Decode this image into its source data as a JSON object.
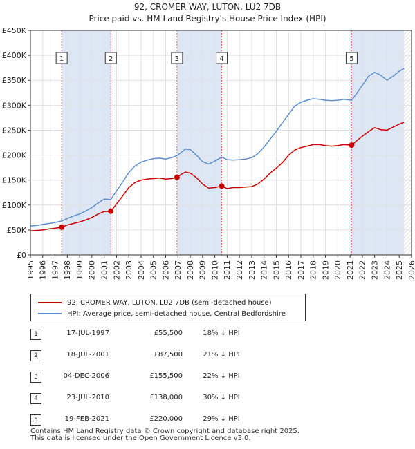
{
  "chart_data": {
    "type": "line",
    "title": "92, CROMER WAY, LUTON, LU2 7DB",
    "subtitle": "Price paid vs. HM Land Registry's House Price Index (HPI)",
    "xlabel": "",
    "ylabel": "",
    "xlim": [
      1995,
      2026
    ],
    "ylim": [
      0,
      450000
    ],
    "y_ticks": [
      0,
      50000,
      100000,
      150000,
      200000,
      250000,
      300000,
      350000,
      400000,
      450000
    ],
    "y_tick_labels": [
      "£0",
      "£50K",
      "£100K",
      "£150K",
      "£200K",
      "£250K",
      "£300K",
      "£350K",
      "£400K",
      "£450K"
    ],
    "x_ticks": [
      1995,
      1996,
      1997,
      1998,
      1999,
      2000,
      2001,
      2002,
      2003,
      2004,
      2005,
      2006,
      2007,
      2008,
      2009,
      2010,
      2011,
      2012,
      2013,
      2014,
      2015,
      2016,
      2017,
      2018,
      2019,
      2020,
      2021,
      2022,
      2023,
      2024,
      2025,
      2026
    ],
    "grid": true,
    "colors": {
      "property": "#cc0000",
      "hpi": "#5b8fcf",
      "band": "#dde6f5",
      "marker_line": "#e06666",
      "hatch": "#cccccc"
    },
    "series": [
      {
        "name": "92, CROMER WAY, LUTON, LU2 7DB (semi-detached house)",
        "x": [
          1995.0,
          1995.5,
          1996.0,
          1996.5,
          1997.0,
          1997.54,
          1998.0,
          1998.5,
          1999.0,
          1999.5,
          2000.0,
          2000.5,
          2001.0,
          2001.54,
          2002.0,
          2002.5,
          2003.0,
          2003.5,
          2004.0,
          2004.5,
          2005.0,
          2005.5,
          2006.0,
          2006.5,
          2006.92,
          2007.3,
          2007.6,
          2008.0,
          2008.5,
          2009.0,
          2009.5,
          2010.0,
          2010.56,
          2011.0,
          2011.5,
          2012.0,
          2012.5,
          2013.0,
          2013.5,
          2014.0,
          2014.5,
          2015.0,
          2015.5,
          2016.0,
          2016.5,
          2017.0,
          2017.5,
          2018.0,
          2018.5,
          2019.0,
          2019.5,
          2020.0,
          2020.5,
          2021.13,
          2021.5,
          2022.0,
          2022.5,
          2023.0,
          2023.5,
          2024.0,
          2024.5,
          2025.0,
          2025.4
        ],
        "y": [
          48000,
          49000,
          50000,
          52000,
          53500,
          55500,
          60000,
          63000,
          66000,
          70000,
          75000,
          82000,
          87000,
          87500,
          102000,
          118000,
          135000,
          145000,
          150000,
          152000,
          153000,
          154000,
          152000,
          153000,
          155500,
          162000,
          166000,
          164000,
          155000,
          142000,
          134000,
          135000,
          138000,
          133000,
          135000,
          135000,
          136000,
          137000,
          142000,
          152000,
          164000,
          174000,
          185000,
          200000,
          210000,
          215000,
          218000,
          221000,
          221000,
          219000,
          218000,
          219000,
          221000,
          220000,
          228000,
          238000,
          247000,
          255000,
          251000,
          250000,
          256000,
          262000,
          266000
        ]
      },
      {
        "name": "HPI: Average price, semi-detached house, Central Bedfordshire",
        "x": [
          1995.0,
          1995.5,
          1996.0,
          1996.5,
          1997.0,
          1997.54,
          1998.0,
          1998.5,
          1999.0,
          1999.5,
          2000.0,
          2000.5,
          2001.0,
          2001.54,
          2002.0,
          2002.5,
          2003.0,
          2003.5,
          2004.0,
          2004.5,
          2005.0,
          2005.5,
          2006.0,
          2006.5,
          2006.92,
          2007.3,
          2007.6,
          2008.0,
          2008.5,
          2009.0,
          2009.5,
          2010.0,
          2010.56,
          2011.0,
          2011.5,
          2012.0,
          2012.5,
          2013.0,
          2013.5,
          2014.0,
          2014.5,
          2015.0,
          2015.5,
          2016.0,
          2016.5,
          2017.0,
          2017.5,
          2018.0,
          2018.5,
          2019.0,
          2019.5,
          2020.0,
          2020.5,
          2021.13,
          2021.5,
          2022.0,
          2022.5,
          2023.0,
          2023.5,
          2024.0,
          2024.5,
          2025.0,
          2025.4
        ],
        "y": [
          58000,
          59000,
          61000,
          63000,
          65000,
          68000,
          73000,
          78000,
          82000,
          88000,
          95000,
          104000,
          112000,
          111000,
          128000,
          146000,
          165000,
          178000,
          186000,
          190000,
          193000,
          194000,
          192000,
          195000,
          199000,
          206000,
          212000,
          211000,
          200000,
          187000,
          182000,
          188000,
          196000,
          191000,
          190000,
          191000,
          192000,
          195000,
          203000,
          216000,
          232000,
          248000,
          265000,
          282000,
          298000,
          306000,
          310000,
          313000,
          312000,
          310000,
          309000,
          310000,
          312000,
          310000,
          322000,
          340000,
          358000,
          366000,
          360000,
          350000,
          358000,
          368000,
          374000
        ]
      }
    ],
    "sales": [
      {
        "label": "1",
        "x": 1997.54,
        "y": 55500
      },
      {
        "label": "2",
        "x": 2001.54,
        "y": 87500
      },
      {
        "label": "3",
        "x": 2006.92,
        "y": 155500
      },
      {
        "label": "4",
        "x": 2010.56,
        "y": 138000
      },
      {
        "label": "5",
        "x": 2021.13,
        "y": 220000
      }
    ],
    "bands": [
      [
        1997.54,
        2001.54
      ],
      [
        2006.92,
        2010.56
      ],
      [
        2021.13,
        2025.4
      ]
    ],
    "hatch_from": 2025.4
  },
  "legend": {
    "property_label": "92, CROMER WAY, LUTON, LU2 7DB (semi-detached house)",
    "hpi_label": "HPI: Average price, semi-detached house, Central Bedfordshire"
  },
  "table": [
    {
      "num": "1",
      "date": "17-JUL-1997",
      "price": "£55,500",
      "hpi": "18% ↓ HPI"
    },
    {
      "num": "2",
      "date": "18-JUL-2001",
      "price": "£87,500",
      "hpi": "21% ↓ HPI"
    },
    {
      "num": "3",
      "date": "04-DEC-2006",
      "price": "£155,500",
      "hpi": "22% ↓ HPI"
    },
    {
      "num": "4",
      "date": "23-JUL-2010",
      "price": "£138,000",
      "hpi": "30% ↓ HPI"
    },
    {
      "num": "5",
      "date": "19-FEB-2021",
      "price": "£220,000",
      "hpi": "29% ↓ HPI"
    }
  ],
  "footer": {
    "line1": "Contains HM Land Registry data © Crown copyright and database right 2025.",
    "line2": "This data is licensed under the Open Government Licence v3.0."
  }
}
